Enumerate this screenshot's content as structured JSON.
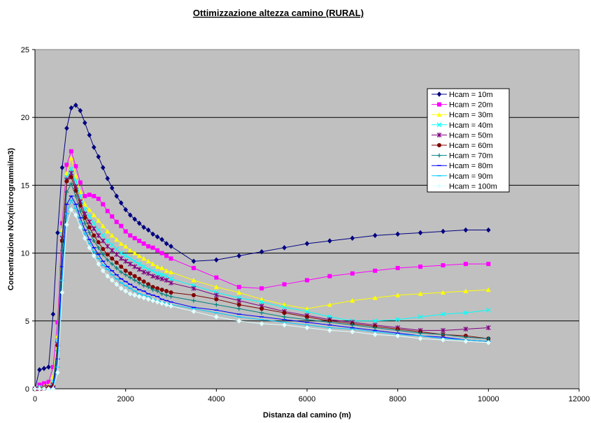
{
  "chart_data": {
    "type": "line",
    "title": "Ottimizzazione altezza camino (RURAL)",
    "xlabel": "Distanza dal camino (m)",
    "ylabel": "Concentrazione NOx(microgrammi/m3)",
    "xlim": [
      0,
      12000
    ],
    "ylim": [
      0,
      25
    ],
    "xticks": [
      0,
      2000,
      4000,
      6000,
      8000,
      10000,
      12000
    ],
    "yticks": [
      0,
      5,
      10,
      15,
      20,
      25
    ],
    "grid": "horizontal",
    "background": "#c0c0c0",
    "legend_position": "top-right",
    "x": [
      0,
      100,
      200,
      300,
      400,
      500,
      600,
      700,
      800,
      900,
      1000,
      1100,
      1200,
      1300,
      1400,
      1500,
      1600,
      1700,
      1800,
      1900,
      2000,
      2100,
      2200,
      2300,
      2400,
      2500,
      2600,
      2700,
      2800,
      2900,
      3000,
      3500,
      4000,
      4500,
      5000,
      5500,
      6000,
      6500,
      7000,
      7500,
      8000,
      8500,
      9000,
      9500,
      10000
    ],
    "series": [
      {
        "name": "Hcam = 10m",
        "color": "#000080",
        "marker": "diamond",
        "values": [
          0,
          1.4,
          1.5,
          1.6,
          5.5,
          11.5,
          16.3,
          19.2,
          20.7,
          20.9,
          20.5,
          19.6,
          18.7,
          17.8,
          17.1,
          16.3,
          15.5,
          14.8,
          14.2,
          13.7,
          13.2,
          12.8,
          12.5,
          12.2,
          11.9,
          11.7,
          11.4,
          11.2,
          11.0,
          10.7,
          10.5,
          9.4,
          9.5,
          9.8,
          10.1,
          10.4,
          10.7,
          10.9,
          11.1,
          11.3,
          11.4,
          11.5,
          11.6,
          11.7,
          11.7
        ]
      },
      {
        "name": "Hcam = 20m",
        "color": "#ff00ff",
        "marker": "square",
        "values": [
          0,
          0.3,
          0.4,
          0.5,
          1.6,
          4.9,
          12.2,
          16.5,
          17.5,
          16.4,
          15.2,
          14.2,
          14.3,
          14.2,
          14.0,
          13.6,
          13.1,
          12.7,
          12.3,
          12.0,
          11.6,
          11.3,
          11.1,
          10.9,
          10.7,
          10.5,
          10.4,
          10.2,
          10.0,
          9.8,
          9.6,
          8.9,
          8.2,
          7.5,
          7.4,
          7.7,
          8.0,
          8.3,
          8.5,
          8.7,
          8.9,
          9.0,
          9.1,
          9.2,
          9.2
        ]
      },
      {
        "name": "Hcam = 30m",
        "color": "#ffff00",
        "marker": "triangle",
        "values": [
          0,
          0.1,
          0.2,
          0.2,
          0.9,
          3.9,
          11.7,
          15.9,
          17.0,
          15.7,
          14.5,
          13.6,
          13.2,
          12.8,
          12.4,
          12.0,
          11.6,
          11.3,
          11.0,
          10.7,
          10.5,
          10.2,
          10.0,
          9.8,
          9.6,
          9.4,
          9.2,
          9.0,
          8.9,
          8.7,
          8.6,
          8.0,
          7.5,
          7.1,
          6.6,
          6.2,
          5.9,
          6.2,
          6.5,
          6.7,
          6.9,
          7.0,
          7.1,
          7.2,
          7.3
        ]
      },
      {
        "name": "Hcam = 40m",
        "color": "#00ffff",
        "marker": "x",
        "values": [
          0,
          0.1,
          0.1,
          0.1,
          0.5,
          3.5,
          11.4,
          15.6,
          16.2,
          15.3,
          14.2,
          13.2,
          12.7,
          12.2,
          11.7,
          11.3,
          10.9,
          10.6,
          10.3,
          10.0,
          9.8,
          9.6,
          9.4,
          9.2,
          9.0,
          8.8,
          8.7,
          8.5,
          8.4,
          8.3,
          8.1,
          7.6,
          7.1,
          6.7,
          6.4,
          6.0,
          5.7,
          5.3,
          5.0,
          5.0,
          5.1,
          5.3,
          5.5,
          5.6,
          5.8
        ]
      },
      {
        "name": "Hcam = 50m",
        "color": "#800080",
        "marker": "star",
        "values": [
          0,
          0.0,
          0.1,
          0.1,
          0.3,
          3.3,
          11.1,
          15.4,
          15.9,
          14.9,
          13.8,
          12.9,
          12.3,
          11.8,
          11.3,
          10.9,
          10.5,
          10.2,
          9.9,
          9.6,
          9.4,
          9.2,
          9.0,
          8.8,
          8.6,
          8.5,
          8.3,
          8.2,
          8.1,
          8.0,
          7.8,
          7.4,
          6.9,
          6.5,
          6.1,
          5.7,
          5.4,
          5.1,
          4.9,
          4.7,
          4.5,
          4.3,
          4.3,
          4.4,
          4.5
        ]
      },
      {
        "name": "Hcam = 60m",
        "color": "#800000",
        "marker": "circle",
        "values": [
          0,
          0.0,
          0.0,
          0.1,
          0.2,
          3.2,
          10.9,
          15.3,
          15.6,
          14.6,
          13.5,
          12.6,
          11.9,
          11.3,
          10.8,
          10.3,
          9.9,
          9.6,
          9.3,
          9.0,
          8.7,
          8.5,
          8.3,
          8.1,
          7.9,
          7.7,
          7.5,
          7.4,
          7.3,
          7.2,
          7.1,
          6.9,
          6.6,
          6.2,
          5.9,
          5.6,
          5.3,
          5.0,
          4.8,
          4.6,
          4.4,
          4.2,
          4.0,
          3.9,
          3.7
        ]
      },
      {
        "name": "Hcam = 70m",
        "color": "#008080",
        "marker": "plus",
        "values": [
          0,
          0.0,
          0.0,
          0.0,
          0.1,
          2.8,
          10.2,
          14.5,
          15.1,
          14.2,
          13.1,
          12.2,
          11.5,
          10.9,
          10.4,
          9.9,
          9.5,
          9.2,
          8.9,
          8.6,
          8.4,
          8.2,
          8.0,
          7.8,
          7.6,
          7.5,
          7.3,
          7.2,
          7.0,
          6.9,
          6.8,
          6.5,
          6.2,
          5.9,
          5.6,
          5.3,
          5.1,
          4.9,
          4.7,
          4.5,
          4.3,
          4.1,
          4.0,
          3.8,
          3.7
        ]
      },
      {
        "name": "Hcam = 80m",
        "color": "#0000ff",
        "marker": "dash",
        "values": [
          0,
          0.0,
          0.0,
          0.0,
          0.1,
          2.2,
          9.0,
          13.6,
          14.2,
          13.6,
          12.6,
          11.7,
          11.0,
          10.4,
          9.9,
          9.4,
          9.0,
          8.7,
          8.4,
          8.1,
          7.9,
          7.7,
          7.5,
          7.3,
          7.2,
          7.0,
          6.9,
          6.8,
          6.6,
          6.5,
          6.4,
          6.0,
          5.8,
          5.5,
          5.3,
          5.1,
          4.9,
          4.7,
          4.5,
          4.3,
          4.1,
          3.9,
          3.8,
          3.6,
          3.5
        ]
      },
      {
        "name": "Hcam = 90m",
        "color": "#00ccff",
        "marker": "dash",
        "values": [
          0,
          0.0,
          0.0,
          0.0,
          0.0,
          1.6,
          8.0,
          12.9,
          13.9,
          13.3,
          12.3,
          11.4,
          10.7,
          10.1,
          9.6,
          9.1,
          8.8,
          8.4,
          8.1,
          7.8,
          7.6,
          7.4,
          7.2,
          7.0,
          6.9,
          6.8,
          6.6,
          6.5,
          6.4,
          6.3,
          6.2,
          5.9,
          5.6,
          5.3,
          5.1,
          4.9,
          4.7,
          4.5,
          4.4,
          4.2,
          4.0,
          3.9,
          3.7,
          3.6,
          3.5
        ]
      },
      {
        "name": "Hcam = 100m",
        "color": "#e0ffff",
        "marker": "diamond",
        "values": [
          0,
          0.0,
          0.0,
          0.0,
          0.0,
          1.2,
          7.1,
          12.1,
          13.2,
          12.8,
          11.9,
          11.1,
          10.4,
          9.8,
          9.2,
          8.7,
          8.3,
          8.0,
          7.7,
          7.4,
          7.2,
          7.0,
          6.9,
          6.8,
          6.7,
          6.6,
          6.5,
          6.4,
          6.3,
          6.2,
          6.1,
          5.7,
          5.3,
          5.0,
          4.8,
          4.7,
          4.5,
          4.3,
          4.2,
          4.0,
          3.9,
          3.7,
          3.6,
          3.5,
          3.4
        ]
      }
    ]
  }
}
